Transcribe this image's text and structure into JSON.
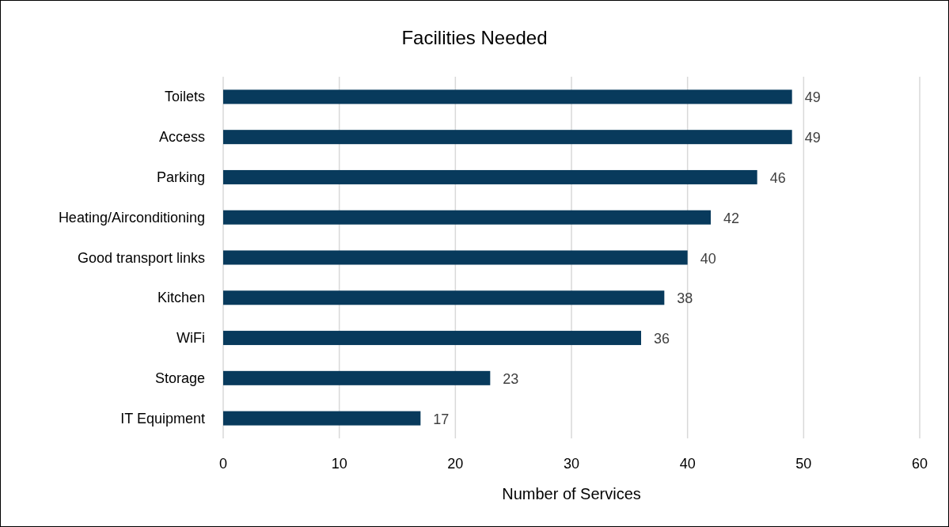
{
  "chart_data": {
    "type": "bar",
    "orientation": "horizontal",
    "title": "Facilities Needed",
    "xlabel": "Number of Services",
    "categories": [
      "Toilets",
      "Access",
      "Parking",
      "Heating/Airconditioning",
      "Good transport links",
      "Kitchen",
      "WiFi",
      "Storage",
      "IT Equipment"
    ],
    "values": [
      49,
      49,
      46,
      42,
      40,
      38,
      36,
      23,
      17
    ],
    "color": "#083a5c",
    "xlim": [
      0,
      60
    ],
    "xticks": [
      0,
      10,
      20,
      30,
      40,
      50,
      60
    ],
    "grid": "x",
    "data_labels": true
  }
}
